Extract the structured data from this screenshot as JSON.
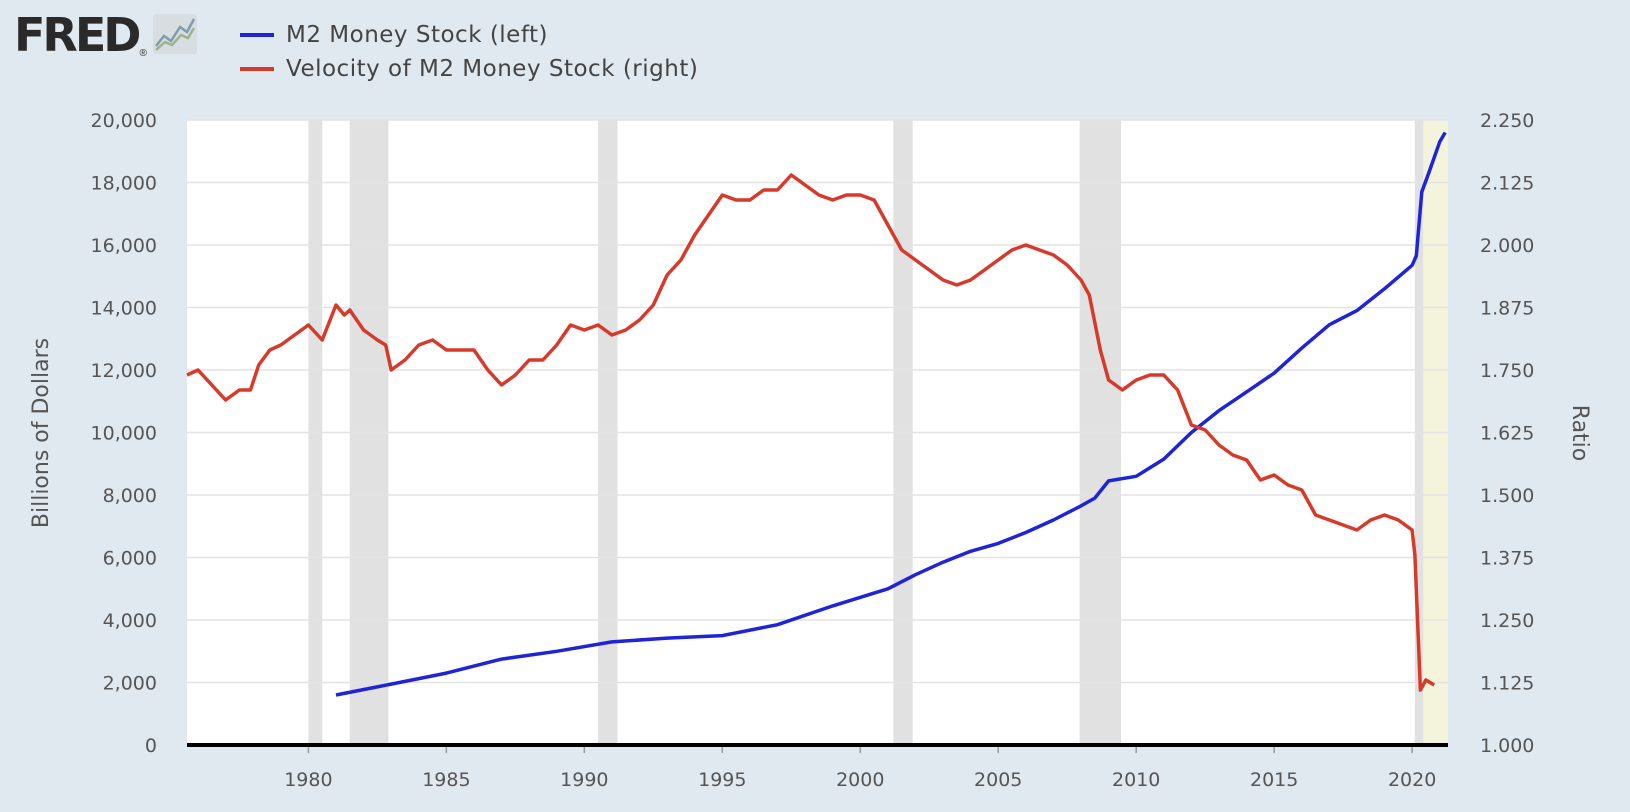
{
  "logo": {
    "text": "FRED",
    "reg": "®",
    "icon": "trend-chart-icon"
  },
  "legend": [
    {
      "label": "M2 Money Stock (left)",
      "color": "#1f24d6"
    },
    {
      "label": "Velocity of M2 Money Stock (right)",
      "color": "#d73a2a"
    }
  ],
  "chart_data": {
    "type": "line",
    "xlabel": "",
    "ylabel_left": "Billions of Dollars",
    "ylabel_right": "Ratio",
    "xlim": [
      1975.6,
      2021.3
    ],
    "ylim_left": [
      0,
      20000
    ],
    "ylim_right": [
      1.0,
      2.25
    ],
    "x_ticks": [
      "1980",
      "1985",
      "1990",
      "1995",
      "2000",
      "2005",
      "2010",
      "2015",
      "2020"
    ],
    "y_left_ticks": [
      "0",
      "2,000",
      "4,000",
      "6,000",
      "8,000",
      "10,000",
      "12,000",
      "14,000",
      "16,000",
      "18,000",
      "20,000"
    ],
    "y_right_ticks": [
      "1.000",
      "1.125",
      "1.250",
      "1.375",
      "1.500",
      "1.625",
      "1.750",
      "1.875",
      "2.000",
      "2.125",
      "2.250"
    ],
    "grid": true,
    "recessions": [
      [
        1980.0,
        1980.5
      ],
      [
        1981.5,
        1982.9
      ],
      [
        1990.5,
        1991.2
      ],
      [
        2001.2,
        2001.9
      ],
      [
        2007.95,
        2009.45
      ],
      [
        2020.1,
        2020.4
      ]
    ],
    "highlight": {
      "range": [
        2020.1,
        2021.3
      ],
      "color": "#f4f4dc"
    },
    "series": [
      {
        "name": "M2 Money Stock (left)",
        "axis": "left",
        "color": "#1f24d6",
        "points": [
          [
            1981.0,
            1600
          ],
          [
            1983.0,
            1950
          ],
          [
            1985.0,
            2300
          ],
          [
            1987.0,
            2750
          ],
          [
            1989.0,
            3000
          ],
          [
            1991.0,
            3300
          ],
          [
            1993.0,
            3420
          ],
          [
            1995.0,
            3500
          ],
          [
            1997.0,
            3850
          ],
          [
            1999.0,
            4450
          ],
          [
            2001.0,
            5000
          ],
          [
            2002.0,
            5450
          ],
          [
            2003.0,
            5850
          ],
          [
            2004.0,
            6200
          ],
          [
            2005.0,
            6450
          ],
          [
            2006.0,
            6800
          ],
          [
            2007.0,
            7200
          ],
          [
            2008.0,
            7650
          ],
          [
            2008.5,
            7900
          ],
          [
            2009.0,
            8450
          ],
          [
            2010.0,
            8600
          ],
          [
            2011.0,
            9150
          ],
          [
            2012.0,
            10000
          ],
          [
            2013.0,
            10700
          ],
          [
            2014.0,
            11300
          ],
          [
            2015.0,
            11900
          ],
          [
            2016.0,
            12700
          ],
          [
            2017.0,
            13450
          ],
          [
            2018.0,
            13900
          ],
          [
            2019.0,
            14600
          ],
          [
            2020.0,
            15350
          ],
          [
            2020.15,
            15650
          ],
          [
            2020.35,
            17700
          ],
          [
            2020.6,
            18300
          ],
          [
            2021.0,
            19300
          ],
          [
            2021.2,
            19600
          ]
        ]
      },
      {
        "name": "Velocity of M2 Money Stock (right)",
        "axis": "right",
        "color": "#d73a2a",
        "points": [
          [
            1975.6,
            1.74
          ],
          [
            1976.0,
            1.75
          ],
          [
            1976.5,
            1.72
          ],
          [
            1977.0,
            1.69
          ],
          [
            1977.5,
            1.71
          ],
          [
            1977.9,
            1.71
          ],
          [
            1978.2,
            1.76
          ],
          [
            1978.6,
            1.79
          ],
          [
            1979.0,
            1.8
          ],
          [
            1979.5,
            1.82
          ],
          [
            1980.0,
            1.84
          ],
          [
            1980.5,
            1.81
          ],
          [
            1981.0,
            1.88
          ],
          [
            1981.3,
            1.86
          ],
          [
            1981.5,
            1.87
          ],
          [
            1982.0,
            1.83
          ],
          [
            1982.5,
            1.81
          ],
          [
            1982.8,
            1.8
          ],
          [
            1983.0,
            1.75
          ],
          [
            1983.5,
            1.77
          ],
          [
            1984.0,
            1.8
          ],
          [
            1984.5,
            1.81
          ],
          [
            1985.0,
            1.79
          ],
          [
            1985.5,
            1.79
          ],
          [
            1986.0,
            1.79
          ],
          [
            1986.5,
            1.75
          ],
          [
            1987.0,
            1.72
          ],
          [
            1987.5,
            1.74
          ],
          [
            1988.0,
            1.77
          ],
          [
            1988.5,
            1.77
          ],
          [
            1989.0,
            1.8
          ],
          [
            1989.5,
            1.84
          ],
          [
            1990.0,
            1.83
          ],
          [
            1990.5,
            1.84
          ],
          [
            1991.0,
            1.82
          ],
          [
            1991.5,
            1.83
          ],
          [
            1992.0,
            1.85
          ],
          [
            1992.5,
            1.88
          ],
          [
            1993.0,
            1.94
          ],
          [
            1993.5,
            1.97
          ],
          [
            1994.0,
            2.02
          ],
          [
            1994.5,
            2.06
          ],
          [
            1995.0,
            2.1
          ],
          [
            1995.5,
            2.09
          ],
          [
            1996.0,
            2.09
          ],
          [
            1996.5,
            2.11
          ],
          [
            1997.0,
            2.11
          ],
          [
            1997.5,
            2.14
          ],
          [
            1998.0,
            2.12
          ],
          [
            1998.5,
            2.1
          ],
          [
            1999.0,
            2.09
          ],
          [
            1999.5,
            2.1
          ],
          [
            2000.0,
            2.1
          ],
          [
            2000.5,
            2.09
          ],
          [
            2001.0,
            2.04
          ],
          [
            2001.5,
            1.99
          ],
          [
            2002.0,
            1.97
          ],
          [
            2002.5,
            1.95
          ],
          [
            2003.0,
            1.93
          ],
          [
            2003.5,
            1.92
          ],
          [
            2004.0,
            1.93
          ],
          [
            2004.5,
            1.95
          ],
          [
            2005.0,
            1.97
          ],
          [
            2005.5,
            1.99
          ],
          [
            2006.0,
            2.0
          ],
          [
            2006.5,
            1.99
          ],
          [
            2007.0,
            1.98
          ],
          [
            2007.5,
            1.96
          ],
          [
            2008.0,
            1.93
          ],
          [
            2008.3,
            1.9
          ],
          [
            2008.7,
            1.79
          ],
          [
            2009.0,
            1.73
          ],
          [
            2009.5,
            1.71
          ],
          [
            2010.0,
            1.73
          ],
          [
            2010.5,
            1.74
          ],
          [
            2011.0,
            1.74
          ],
          [
            2011.5,
            1.71
          ],
          [
            2012.0,
            1.64
          ],
          [
            2012.5,
            1.63
          ],
          [
            2013.0,
            1.6
          ],
          [
            2013.5,
            1.58
          ],
          [
            2014.0,
            1.57
          ],
          [
            2014.5,
            1.53
          ],
          [
            2015.0,
            1.54
          ],
          [
            2015.5,
            1.52
          ],
          [
            2016.0,
            1.51
          ],
          [
            2016.5,
            1.46
          ],
          [
            2017.0,
            1.45
          ],
          [
            2017.5,
            1.44
          ],
          [
            2018.0,
            1.43
          ],
          [
            2018.5,
            1.45
          ],
          [
            2019.0,
            1.46
          ],
          [
            2019.5,
            1.45
          ],
          [
            2020.0,
            1.43
          ],
          [
            2020.1,
            1.38
          ],
          [
            2020.3,
            1.11
          ],
          [
            2020.5,
            1.13
          ],
          [
            2020.8,
            1.12
          ]
        ]
      }
    ]
  }
}
